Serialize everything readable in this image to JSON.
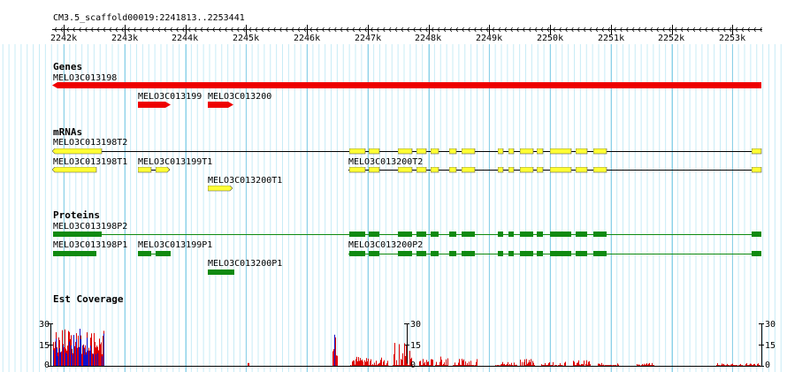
{
  "ruler": {
    "region_label": "CM3.5_scaffold00019:2241813..2253441",
    "ticks": [
      "2242k",
      "2243k",
      "2244k",
      "2245k",
      "2246k",
      "2247k",
      "2248k",
      "2249k",
      "2250k",
      "2251k",
      "2252k",
      "2253k"
    ]
  },
  "tracks": {
    "genes": {
      "title": "Genes",
      "features": [
        "MELO3C013198",
        "MELO3C013199",
        "MELO3C013200"
      ]
    },
    "mrnas": {
      "title": "mRNAs",
      "features": [
        "MELO3C013198T2",
        "MELO3C013198T1",
        "MELO3C013199T1",
        "MELO3C013200T2",
        "MELO3C013200T1"
      ]
    },
    "proteins": {
      "title": "Proteins",
      "features": [
        "MELO3C013198P2",
        "MELO3C013198P1",
        "MELO3C013199P1",
        "MELO3C013200P2",
        "MELO3C013200P1"
      ]
    },
    "est_coverage": {
      "title": "Est Coverage",
      "axis": {
        "max": "30",
        "mid": "15",
        "min": "0"
      }
    }
  },
  "colors": {
    "gene": "#ee0000",
    "mrna_fill": "#ffff33",
    "protein": "#108a10",
    "grid_major": "#8cd0e8",
    "grid_minor": "#c8ecf6",
    "coverage_red": "#dd0000",
    "coverage_blue": "#1010cc"
  }
}
